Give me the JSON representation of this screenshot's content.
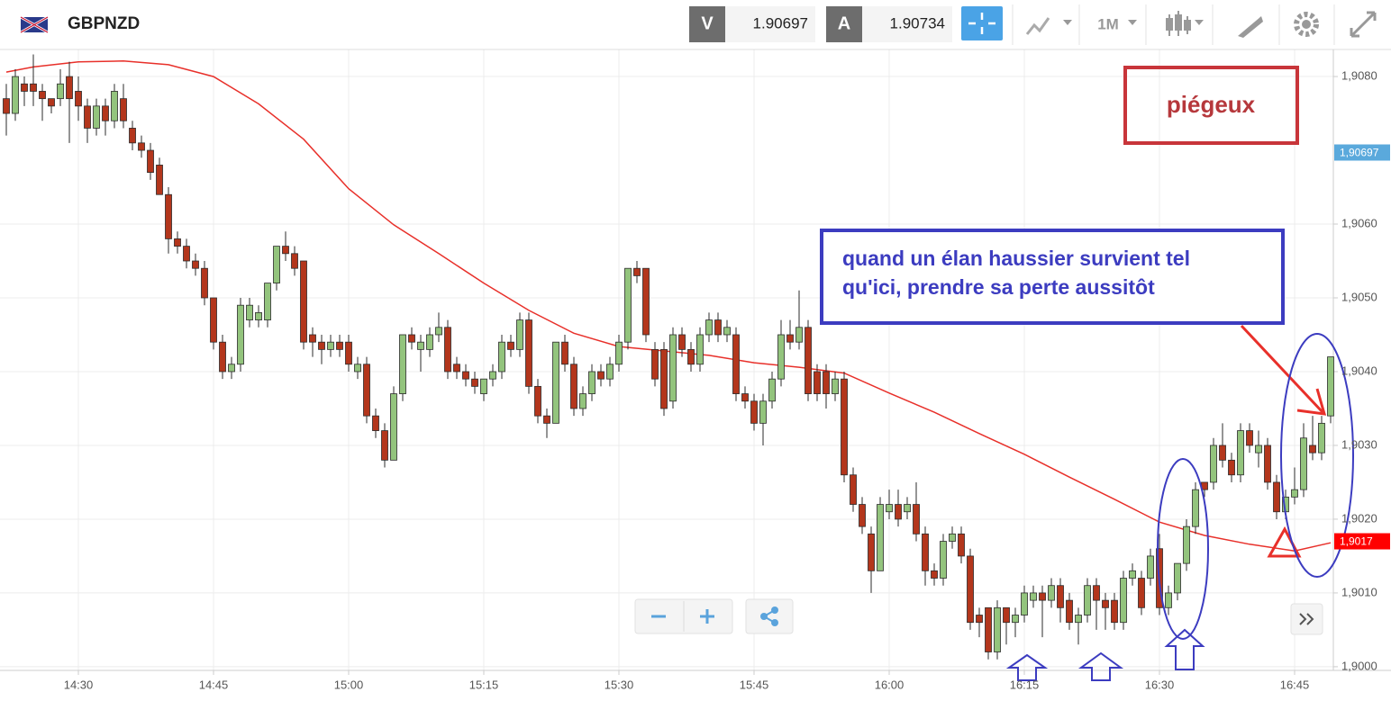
{
  "header": {
    "symbol": "GBPNZD",
    "sell_label": "V",
    "sell_price": "1.90697",
    "buy_label": "A",
    "buy_price": "1.90734",
    "timeframe": "1M"
  },
  "chart_data": {
    "type": "candlestick",
    "x": [
      "14:22",
      "14:23",
      "14:24",
      "14:25",
      "14:26",
      "14:27",
      "14:28",
      "14:29",
      "14:30",
      "14:31",
      "14:32",
      "14:33",
      "14:34",
      "14:35",
      "14:36",
      "14:37",
      "14:38",
      "14:39",
      "14:40",
      "14:41",
      "14:42",
      "14:43",
      "14:44",
      "14:45",
      "14:46",
      "14:47",
      "14:48",
      "14:49",
      "14:50",
      "14:51",
      "14:52",
      "14:53",
      "14:54",
      "14:55",
      "14:56",
      "14:57",
      "14:58",
      "14:59",
      "15:00",
      "15:01",
      "15:02",
      "15:03",
      "15:04",
      "15:05",
      "15:06",
      "15:07",
      "15:08",
      "15:09",
      "15:10",
      "15:11",
      "15:12",
      "15:13",
      "15:14",
      "15:15",
      "15:16",
      "15:17",
      "15:18",
      "15:19",
      "15:20",
      "15:21",
      "15:22",
      "15:23",
      "15:24",
      "15:25",
      "15:26",
      "15:27",
      "15:28",
      "15:29",
      "15:30",
      "15:31",
      "15:32",
      "15:33",
      "15:34",
      "15:35",
      "15:36",
      "15:37",
      "15:38",
      "15:39",
      "15:40",
      "15:41",
      "15:42",
      "15:43",
      "15:44",
      "15:45",
      "15:46",
      "15:47",
      "15:48",
      "15:49",
      "15:50",
      "15:51",
      "15:52",
      "15:53",
      "15:54",
      "15:55",
      "15:56",
      "15:57",
      "15:58",
      "15:59",
      "16:00",
      "16:01",
      "16:02",
      "16:03",
      "16:04",
      "16:05",
      "16:06",
      "16:07",
      "16:08",
      "16:09",
      "16:10",
      "16:11",
      "16:12",
      "16:13",
      "16:14",
      "16:15",
      "16:16",
      "16:17",
      "16:18",
      "16:19",
      "16:20",
      "16:21",
      "16:22",
      "16:23",
      "16:24",
      "16:25",
      "16:26",
      "16:27",
      "16:28",
      "16:29",
      "16:30",
      "16:31",
      "16:32",
      "16:33",
      "16:34",
      "16:35",
      "16:36",
      "16:37",
      "16:38",
      "16:39",
      "16:40",
      "16:41",
      "16:42",
      "16:43",
      "16:44",
      "16:45",
      "16:46",
      "16:47",
      "16:48",
      "16:49"
    ],
    "open": [
      1.9077,
      1.9075,
      1.9079,
      1.9079,
      1.9078,
      1.9077,
      1.9077,
      1.908,
      1.9078,
      1.9076,
      1.9073,
      1.9076,
      1.9074,
      1.9077,
      1.9073,
      1.9071,
      1.907,
      1.9068,
      1.9064,
      1.9058,
      1.9057,
      1.9055,
      1.9054,
      1.905,
      1.9044,
      1.904,
      1.9041,
      1.9047,
      1.9047,
      1.9047,
      1.9052,
      1.9057,
      1.9056,
      1.9055,
      1.9045,
      1.9044,
      1.9043,
      1.9044,
      1.9044,
      1.904,
      1.9041,
      1.9034,
      1.9032,
      1.9028,
      1.9037,
      1.9045,
      1.9043,
      1.9043,
      1.9045,
      1.9046,
      1.9041,
      1.904,
      1.9039,
      1.9037,
      1.9039,
      1.904,
      1.9044,
      1.9043,
      1.9047,
      1.9038,
      1.9034,
      1.9033,
      1.9044,
      1.9041,
      1.9035,
      1.9037,
      1.904,
      1.9039,
      1.9041,
      1.9044,
      1.9054,
      1.9054,
      1.9043,
      1.9043,
      1.9036,
      1.9045,
      1.9043,
      1.9041,
      1.9045,
      1.9047,
      1.9045,
      1.9045,
      1.9037,
      1.9036,
      1.9033,
      1.9036,
      1.9039,
      1.9045,
      1.9044,
      1.9046,
      1.904,
      1.904,
      1.9037,
      1.9039,
      1.9026,
      1.9022,
      1.9018,
      1.9013,
      1.9021,
      1.9022,
      1.9021,
      1.9022,
      1.9018,
      1.9013,
      1.9012,
      1.9017,
      1.9018,
      1.9015,
      1.9007,
      1.9008,
      1.9002,
      1.9008,
      1.9006,
      1.9007,
      1.9009,
      1.901,
      1.9009,
      1.9011,
      1.9009,
      1.9006,
      1.9007,
      1.9011,
      1.9009,
      1.9009,
      1.9006,
      1.9012,
      1.9012,
      1.9012,
      1.9016,
      1.9008,
      1.901,
      1.9014,
      1.9019,
      1.9025,
      1.9025,
      1.903,
      1.9028,
      1.9026,
      1.9032,
      1.9029,
      1.903,
      1.9025,
      1.9021,
      1.9023,
      1.9024,
      1.903,
      1.9029,
      1.9034
    ],
    "high": [
      1.9079,
      1.9081,
      1.908,
      1.9083,
      1.9079,
      1.9077,
      1.9081,
      1.9082,
      1.908,
      1.9077,
      1.9077,
      1.9077,
      1.9079,
      1.9079,
      1.9074,
      1.9072,
      1.9071,
      1.9069,
      1.9065,
      1.9059,
      1.9058,
      1.9056,
      1.9055,
      1.905,
      1.9045,
      1.9042,
      1.905,
      1.905,
      1.9049,
      1.9052,
      1.9057,
      1.9059,
      1.9057,
      1.9055,
      1.9046,
      1.9045,
      1.9045,
      1.9045,
      1.9045,
      1.9042,
      1.9042,
      1.9035,
      1.9033,
      1.9038,
      1.9045,
      1.9046,
      1.9045,
      1.9046,
      1.9048,
      1.9047,
      1.9042,
      1.9041,
      1.904,
      1.9039,
      1.9041,
      1.9045,
      1.9045,
      1.9048,
      1.9048,
      1.9039,
      1.9035,
      1.9044,
      1.9045,
      1.9042,
      1.9038,
      1.9041,
      1.9041,
      1.9042,
      1.9045,
      1.9054,
      1.9055,
      1.9054,
      1.9044,
      1.9044,
      1.9046,
      1.9046,
      1.9044,
      1.9046,
      1.9048,
      1.9048,
      1.9047,
      1.9046,
      1.9038,
      1.9037,
      1.9037,
      1.904,
      1.9047,
      1.9047,
      1.9051,
      1.9047,
      1.9041,
      1.9041,
      1.904,
      1.904,
      1.9027,
      1.9023,
      1.9019,
      1.9023,
      1.9024,
      1.9024,
      1.9023,
      1.9025,
      1.9019,
      1.9014,
      1.9018,
      1.9019,
      1.9019,
      1.9016,
      1.9008,
      1.9008,
      1.9009,
      1.9008,
      1.9008,
      1.9011,
      1.9011,
      1.9011,
      1.9012,
      1.9012,
      1.901,
      1.9008,
      1.9012,
      1.9012,
      1.901,
      1.901,
      1.9013,
      1.9014,
      1.9013,
      1.9016,
      1.9018,
      1.9011,
      1.9014,
      1.902,
      1.9025,
      1.9025,
      1.9031,
      1.9033,
      1.9029,
      1.9033,
      1.9033,
      1.9032,
      1.9031,
      1.9026,
      1.9024,
      1.9027,
      1.9033,
      1.9034,
      1.9034,
      1.9042
    ],
    "low": [
      1.9072,
      1.9074,
      1.9076,
      1.9076,
      1.9074,
      1.9075,
      1.9076,
      1.9071,
      1.9074,
      1.9071,
      1.9072,
      1.9072,
      1.9073,
      1.9073,
      1.907,
      1.9069,
      1.9066,
      1.9064,
      1.9056,
      1.9056,
      1.9054,
      1.9053,
      1.9049,
      1.9043,
      1.9039,
      1.9039,
      1.904,
      1.9046,
      1.9046,
      1.9046,
      1.9051,
      1.9055,
      1.9053,
      1.9043,
      1.9042,
      1.9041,
      1.9042,
      1.9042,
      1.904,
      1.9039,
      1.9033,
      1.9031,
      1.9027,
      1.9028,
      1.9036,
      1.9043,
      1.904,
      1.9042,
      1.9044,
      1.9039,
      1.9039,
      1.9038,
      1.9037,
      1.9036,
      1.9038,
      1.9039,
      1.9042,
      1.9042,
      1.9037,
      1.9033,
      1.9031,
      1.9033,
      1.904,
      1.9034,
      1.9034,
      1.9036,
      1.9038,
      1.9038,
      1.904,
      1.9043,
      1.9052,
      1.9044,
      1.9038,
      1.9034,
      1.9035,
      1.9042,
      1.904,
      1.904,
      1.9044,
      1.9044,
      1.9044,
      1.9036,
      1.9035,
      1.9032,
      1.903,
      1.9035,
      1.9038,
      1.9043,
      1.9043,
      1.9036,
      1.9036,
      1.9035,
      1.9036,
      1.9025,
      1.9021,
      1.9018,
      1.901,
      1.9013,
      1.902,
      1.9019,
      1.902,
      1.9017,
      1.9011,
      1.9011,
      1.9011,
      1.9016,
      1.9014,
      1.9005,
      1.9004,
      1.9001,
      1.9001,
      1.9003,
      1.9004,
      1.9006,
      1.9008,
      1.9004,
      1.9008,
      1.9006,
      1.9005,
      1.9003,
      1.9006,
      1.9005,
      1.9005,
      1.9005,
      1.9005,
      1.9011,
      1.9007,
      1.9011,
      1.9007,
      1.9007,
      1.9009,
      1.9013,
      1.9018,
      1.9023,
      1.9024,
      1.9027,
      1.9025,
      1.9025,
      1.9029,
      1.9027,
      1.9024,
      1.902,
      1.902,
      1.9022,
      1.9023,
      1.9028,
      1.9028,
      1.9033
    ],
    "close": [
      1.9075,
      1.908,
      1.9078,
      1.9078,
      1.9077,
      1.9076,
      1.9079,
      1.9077,
      1.9076,
      1.9073,
      1.9076,
      1.9074,
      1.9078,
      1.9074,
      1.9071,
      1.907,
      1.9067,
      1.9064,
      1.9058,
      1.9057,
      1.9055,
      1.9054,
      1.905,
      1.9044,
      1.904,
      1.9041,
      1.9049,
      1.9049,
      1.9048,
      1.9052,
      1.9057,
      1.9056,
      1.9054,
      1.9044,
      1.9044,
      1.9043,
      1.9044,
      1.9043,
      1.9041,
      1.9041,
      1.9034,
      1.9032,
      1.9028,
      1.9037,
      1.9045,
      1.9044,
      1.9044,
      1.9045,
      1.9046,
      1.904,
      1.904,
      1.9039,
      1.9038,
      1.9039,
      1.904,
      1.9044,
      1.9043,
      1.9047,
      1.9038,
      1.9034,
      1.9033,
      1.9044,
      1.9041,
      1.9035,
      1.9037,
      1.904,
      1.9039,
      1.9041,
      1.9044,
      1.9054,
      1.9053,
      1.9045,
      1.9039,
      1.9035,
      1.9045,
      1.9043,
      1.9041,
      1.9045,
      1.9047,
      1.9045,
      1.9046,
      1.9037,
      1.9036,
      1.9033,
      1.9036,
      1.9039,
      1.9045,
      1.9044,
      1.9046,
      1.9037,
      1.9037,
      1.9037,
      1.9039,
      1.9026,
      1.9022,
      1.9019,
      1.9013,
      1.9022,
      1.9022,
      1.902,
      1.9022,
      1.9018,
      1.9013,
      1.9012,
      1.9017,
      1.9018,
      1.9015,
      1.9006,
      1.9006,
      1.9002,
      1.9008,
      1.9006,
      1.9007,
      1.901,
      1.901,
      1.9009,
      1.9011,
      1.9008,
      1.9006,
      1.9007,
      1.9011,
      1.9009,
      1.9008,
      1.9006,
      1.9012,
      1.9013,
      1.9008,
      1.9015,
      1.9008,
      1.901,
      1.9014,
      1.9019,
      1.9024,
      1.9024,
      1.903,
      1.9028,
      1.9026,
      1.9032,
      1.903,
      1.903,
      1.9025,
      1.9021,
      1.9023,
      1.9024,
      1.9031,
      1.9029,
      1.9033,
      1.9042
    ],
    "up_color": "#93c47d",
    "down_color": "#b3361c",
    "outline_color": "#2b2b2b",
    "ma": {
      "color": "#e8302a",
      "x": [
        "14:22",
        "14:25",
        "14:30",
        "14:35",
        "14:40",
        "14:45",
        "14:50",
        "14:55",
        "15:00",
        "15:05",
        "15:10",
        "15:15",
        "15:20",
        "15:25",
        "15:30",
        "15:35",
        "15:40",
        "15:45",
        "15:50",
        "15:55",
        "16:00",
        "16:05",
        "16:10",
        "16:15",
        "16:20",
        "16:25",
        "16:30",
        "16:35",
        "16:40",
        "16:45",
        "16:49"
      ],
      "values": [
        1.90806,
        1.90813,
        1.9082,
        1.90821,
        1.90816,
        1.908,
        1.90763,
        1.90715,
        1.90648,
        1.90599,
        1.9056,
        1.9052,
        1.90483,
        1.90452,
        1.90434,
        1.90428,
        1.90422,
        1.90412,
        1.90406,
        1.90398,
        1.90371,
        1.90345,
        1.90316,
        1.90288,
        1.90257,
        1.90227,
        1.90196,
        1.90178,
        1.90166,
        1.90157,
        1.90168
      ]
    },
    "ylim": [
      1.89995,
      1.90833
    ],
    "yticks": [
      {
        "value": 1.9,
        "label": "1,9000"
      },
      {
        "value": 1.901,
        "label": "1,9010"
      },
      {
        "value": 1.902,
        "label": "1,9020"
      },
      {
        "value": 1.903,
        "label": "1,9030"
      },
      {
        "value": 1.904,
        "label": "1,9040"
      },
      {
        "value": 1.905,
        "label": "1,9050"
      },
      {
        "value": 1.906,
        "label": "1,9060"
      },
      {
        "value": 1.908,
        "label": "1,9080"
      }
    ],
    "xticks": [
      "14:30",
      "14:45",
      "15:00",
      "15:15",
      "15:30",
      "15:45",
      "16:00",
      "16:15",
      "16:30",
      "16:45"
    ],
    "grid": true,
    "price_tags": [
      {
        "value": 1.90697,
        "label": "1,90697",
        "color": "#5aa9dc"
      },
      {
        "value": 1.9017,
        "label": "1,9017",
        "color": "#ff0000"
      }
    ],
    "annotations": {
      "warning": "piégeux",
      "advice": [
        "quand un élan haussier survient tel",
        "qu'ici, prendre sa perte aussitôt"
      ]
    }
  }
}
